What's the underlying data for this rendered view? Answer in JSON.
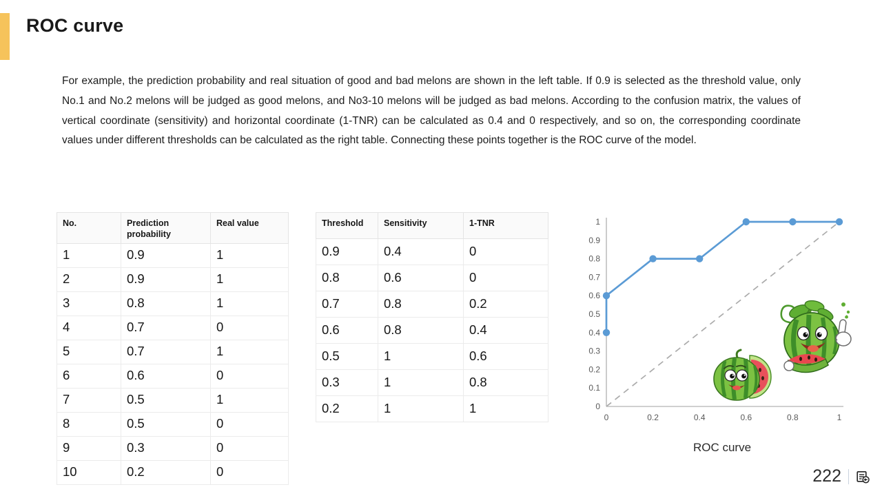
{
  "slide": {
    "title": "ROC curve",
    "accent_color": "#F6C35B",
    "paragraph": "For example, the prediction probability and real situation of good and bad melons are shown in the left table. If 0.9 is selected as the threshold value, only No.1 and No.2 melons will be judged as good melons, and No3-10 melons will be judged as bad melons. According to the confusion matrix, the values of vertical coordinate (sensitivity) and horizontal coordinate (1-TNR) can be calculated as 0.4 and 0 respectively, and so on, the corresponding coordinate values under different thresholds can be calculated as the right table. Connecting these points together is the ROC curve of the model.",
    "page_number": "222"
  },
  "left_table": {
    "headers": [
      "No.",
      "Prediction probability",
      "Real value"
    ],
    "rows": [
      [
        "1",
        "0.9",
        "1"
      ],
      [
        "2",
        "0.9",
        "1"
      ],
      [
        "3",
        "0.8",
        "1"
      ],
      [
        "4",
        "0.7",
        "0"
      ],
      [
        "5",
        "0.7",
        "1"
      ],
      [
        "6",
        "0.6",
        "0"
      ],
      [
        "7",
        "0.5",
        "1"
      ],
      [
        "8",
        "0.5",
        "0"
      ],
      [
        "9",
        "0.3",
        "0"
      ],
      [
        "10",
        "0.2",
        "0"
      ]
    ]
  },
  "right_table": {
    "headers": [
      "Threshold",
      "Sensitivity",
      "1-TNR"
    ],
    "rows": [
      [
        "0.9",
        "0.4",
        "0"
      ],
      [
        "0.8",
        "0.6",
        "0"
      ],
      [
        "0.7",
        "0.8",
        "0.2"
      ],
      [
        "0.6",
        "0.8",
        "0.4"
      ],
      [
        "0.5",
        "1",
        "0.6"
      ],
      [
        "0.3",
        "1",
        "0.8"
      ],
      [
        "0.2",
        "1",
        "1"
      ]
    ]
  },
  "chart_data": {
    "type": "line",
    "title": "ROC curve",
    "caption": "ROC curve",
    "series": [
      {
        "name": "ROC curve",
        "x": [
          0,
          0,
          0.2,
          0.4,
          0.6,
          0.8,
          1
        ],
        "y": [
          0.4,
          0.6,
          0.8,
          0.8,
          1,
          1,
          1
        ]
      }
    ],
    "reference_line": {
      "type": "diagonal",
      "style": "dashed",
      "from": [
        0,
        0
      ],
      "to": [
        1,
        1
      ]
    },
    "x_ticks": [
      "0",
      "0.2",
      "0.4",
      "0.6",
      "0.8",
      "1"
    ],
    "y_ticks": [
      "0",
      "0.1",
      "0.2",
      "0.3",
      "0.4",
      "0.5",
      "0.6",
      "0.7",
      "0.8",
      "0.9",
      "1"
    ],
    "xlim": [
      0,
      1
    ],
    "ylim": [
      0,
      1
    ],
    "xlabel": "",
    "ylabel": "",
    "grid": false,
    "legend": false,
    "marker": "circle",
    "line_color": "#5B9BD5",
    "diagonal_color": "#ABABAB",
    "axis_color": "#C0C0C0"
  }
}
